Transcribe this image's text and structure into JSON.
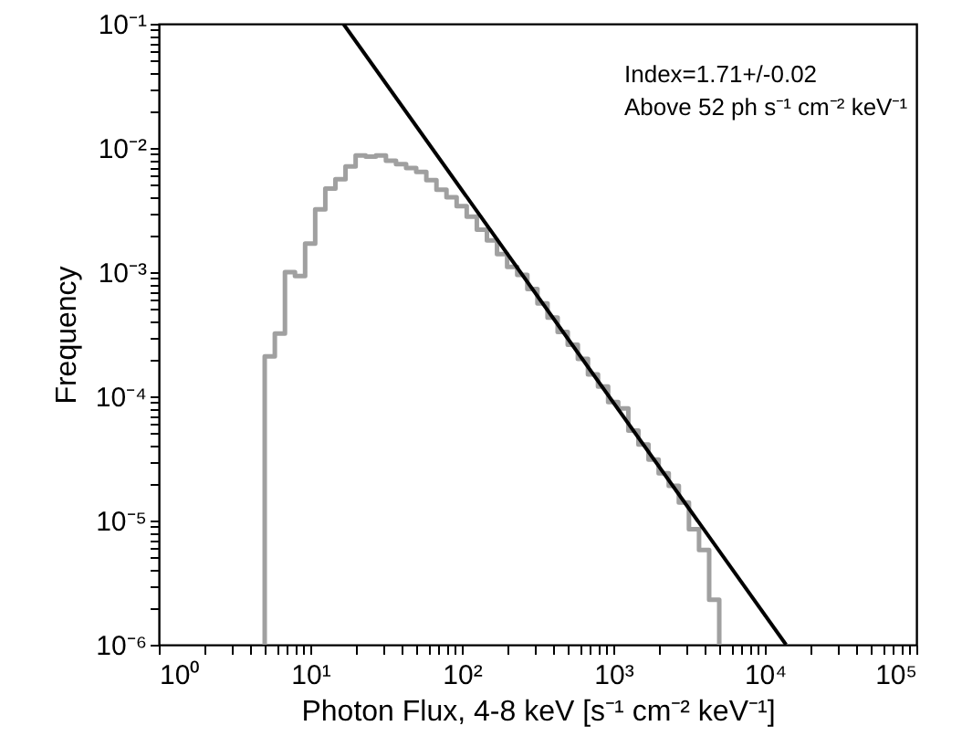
{
  "chart_data": {
    "type": "histogram",
    "xlabel": "Photon Flux, 4-8 keV [s⁻¹ cm⁻² keV⁻¹]",
    "ylabel": "Frequency",
    "annotations": [
      "Index=1.71+/-0.02",
      "Above 52 ph s⁻¹ cm⁻² keV⁻¹"
    ],
    "log": "xy",
    "marker": "none",
    "line_style": "solid",
    "xlim": [
      1,
      100000
    ],
    "ylim": [
      1e-06,
      0.1
    ],
    "xticks": [
      {
        "value": 1,
        "label": "10⁰"
      },
      {
        "value": 2,
        "label": null
      },
      {
        "value": 3,
        "label": null
      },
      {
        "value": 4,
        "label": null
      },
      {
        "value": 5,
        "label": null
      },
      {
        "value": 6,
        "label": null
      },
      {
        "value": 7,
        "label": null
      },
      {
        "value": 8,
        "label": null
      },
      {
        "value": 9,
        "label": null
      },
      {
        "value": 10,
        "label": "10¹"
      },
      {
        "value": 20,
        "label": null
      },
      {
        "value": 30,
        "label": null
      },
      {
        "value": 40,
        "label": null
      },
      {
        "value": 50,
        "label": null
      },
      {
        "value": 60,
        "label": null
      },
      {
        "value": 70,
        "label": null
      },
      {
        "value": 80,
        "label": null
      },
      {
        "value": 90,
        "label": null
      },
      {
        "value": 100,
        "label": "10²"
      },
      {
        "value": 200,
        "label": null
      },
      {
        "value": 300,
        "label": null
      },
      {
        "value": 400,
        "label": null
      },
      {
        "value": 500,
        "label": null
      },
      {
        "value": 600,
        "label": null
      },
      {
        "value": 700,
        "label": null
      },
      {
        "value": 800,
        "label": null
      },
      {
        "value": 900,
        "label": null
      },
      {
        "value": 1000,
        "label": "10³"
      },
      {
        "value": 2000,
        "label": null
      },
      {
        "value": 3000,
        "label": null
      },
      {
        "value": 4000,
        "label": null
      },
      {
        "value": 5000,
        "label": null
      },
      {
        "value": 6000,
        "label": null
      },
      {
        "value": 7000,
        "label": null
      },
      {
        "value": 8000,
        "label": null
      },
      {
        "value": 9000,
        "label": null
      },
      {
        "value": 10000,
        "label": "10⁴"
      },
      {
        "value": 20000,
        "label": null
      },
      {
        "value": 30000,
        "label": null
      },
      {
        "value": 40000,
        "label": null
      },
      {
        "value": 50000,
        "label": null
      },
      {
        "value": 60000,
        "label": null
      },
      {
        "value": 70000,
        "label": null
      },
      {
        "value": 80000,
        "label": null
      },
      {
        "value": 90000,
        "label": null
      },
      {
        "value": 100000,
        "label": "10⁵"
      }
    ],
    "yticks": [
      {
        "value": 1e-06,
        "label": "10⁻⁶"
      },
      {
        "value": 2e-06,
        "label": null
      },
      {
        "value": 3e-06,
        "label": null
      },
      {
        "value": 4e-06,
        "label": null
      },
      {
        "value": 5e-06,
        "label": null
      },
      {
        "value": 6e-06,
        "label": null
      },
      {
        "value": 7e-06,
        "label": null
      },
      {
        "value": 8e-06,
        "label": null
      },
      {
        "value": 9e-06,
        "label": null
      },
      {
        "value": 1e-05,
        "label": "10⁻⁵"
      },
      {
        "value": 2e-05,
        "label": null
      },
      {
        "value": 3e-05,
        "label": null
      },
      {
        "value": 4e-05,
        "label": null
      },
      {
        "value": 5e-05,
        "label": null
      },
      {
        "value": 6e-05,
        "label": null
      },
      {
        "value": 7e-05,
        "label": null
      },
      {
        "value": 8e-05,
        "label": null
      },
      {
        "value": 9e-05,
        "label": null
      },
      {
        "value": 0.0001,
        "label": "10⁻⁴"
      },
      {
        "value": 0.0002,
        "label": null
      },
      {
        "value": 0.0003,
        "label": null
      },
      {
        "value": 0.0004,
        "label": null
      },
      {
        "value": 0.0005,
        "label": null
      },
      {
        "value": 0.0006,
        "label": null
      },
      {
        "value": 0.0007,
        "label": null
      },
      {
        "value": 0.0008,
        "label": null
      },
      {
        "value": 0.0009,
        "label": null
      },
      {
        "value": 0.001,
        "label": "10⁻³"
      },
      {
        "value": 0.002,
        "label": null
      },
      {
        "value": 0.003,
        "label": null
      },
      {
        "value": 0.004,
        "label": null
      },
      {
        "value": 0.005,
        "label": null
      },
      {
        "value": 0.006,
        "label": null
      },
      {
        "value": 0.007,
        "label": null
      },
      {
        "value": 0.008,
        "label": null
      },
      {
        "value": 0.009,
        "label": null
      },
      {
        "value": 0.01,
        "label": "10⁻²"
      },
      {
        "value": 0.02,
        "label": null
      },
      {
        "value": 0.03,
        "label": null
      },
      {
        "value": 0.04,
        "label": null
      },
      {
        "value": 0.05,
        "label": null
      },
      {
        "value": 0.06,
        "label": null
      },
      {
        "value": 0.07,
        "label": null
      },
      {
        "value": 0.08,
        "label": null
      },
      {
        "value": 0.09,
        "label": null
      },
      {
        "value": 0.1,
        "label": "10⁻¹"
      }
    ],
    "series": [
      {
        "color": "#a0a0a0",
        "bins": [
          5,
          5.83,
          6.8,
          7.92,
          9.24,
          10.77,
          12.56,
          14.64,
          17.07,
          19.91,
          23.21,
          27.06,
          31.55,
          36.78,
          42.89,
          50,
          58.3,
          68,
          79.2,
          92.4,
          107.7,
          125.6,
          146.4,
          170.7,
          199.1,
          232.1,
          270.6,
          315.5,
          367.8,
          428.9,
          500,
          583,
          680,
          792,
          924,
          1077,
          1256,
          1464,
          1707,
          1991,
          2321,
          2706,
          3155,
          3678,
          4289,
          5000
        ],
        "values": [
          0.00021,
          0.00032,
          0.001,
          0.00093,
          0.0017,
          0.0032,
          0.0047,
          0.0056,
          0.0071,
          0.0087,
          0.0085,
          0.0087,
          0.0079,
          0.0074,
          0.0069,
          0.0064,
          0.0055,
          0.0046,
          0.004,
          0.0034,
          0.0028,
          0.0022,
          0.0018,
          0.0014,
          0.0011,
          0.00095,
          0.00073,
          0.00056,
          0.00043,
          0.00033,
          0.00026,
          0.0002,
          0.00015,
          0.00012,
          9e-05,
          8e-05,
          5.3e-05,
          4.1e-05,
          3.1e-05,
          2.4e-05,
          1.9e-05,
          1.4e-05,
          8.5e-06,
          5.8e-06,
          2.3e-06
        ]
      },
      {
        "type": "line",
        "color": "#000000",
        "x": [
          16.5,
          13800
        ],
        "values": [
          0.1,
          1e-06
        ]
      }
    ]
  }
}
